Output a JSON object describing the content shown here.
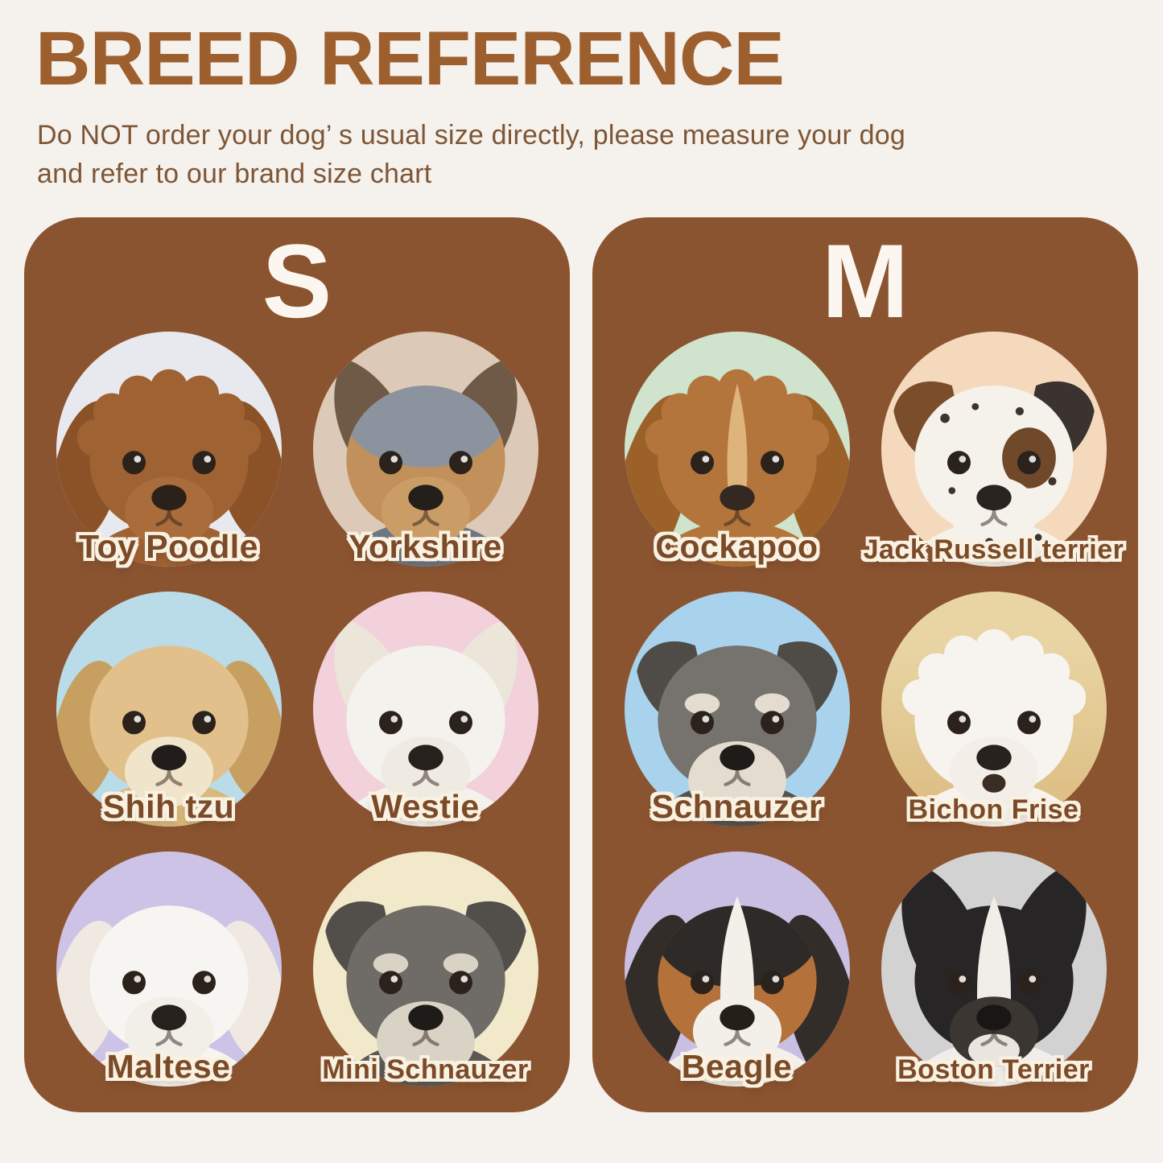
{
  "header": {
    "title": "BREED REFERENCE",
    "subtitle_line1": "Do NOT order your dog’ s usual size directly, please measure your dog",
    "subtitle_line2": "and refer to our brand size chart"
  },
  "theme": {
    "page_bg": "#f5f1ec",
    "panel_bg": "#8b5431",
    "title_color": "#9d5f2e",
    "subtitle_color": "#7d5636",
    "size_letter_color": "#fbf7f0",
    "label_color": "#7b4a28",
    "label_outline": "#f9f1e1"
  },
  "panels": [
    {
      "size_label": "S",
      "breeds": [
        {
          "name": "Toy Poodle",
          "bg": "#e7e9ee",
          "fur": "#9f6233",
          "ear": "floppy",
          "earColor": "#8a5226",
          "curly": true,
          "muzzle": "#a96c3a",
          "nose": "#2b2118",
          "chest": "#9f6233"
        },
        {
          "name": "Yorkshire",
          "bg": "#ddc9b7",
          "fur": "#c2905a",
          "top": "#8b939f",
          "ear": "pointy",
          "earColor": "#6e5a47",
          "muzzle": "#cb9d66",
          "nose": "#241f1b",
          "chest": "#6d7683"
        },
        {
          "name": "Shih tzu",
          "bg": "#b9dce8",
          "fur": "#e2c08b",
          "ear": "floppy",
          "earColor": "#c7a061",
          "muzzle": "#f0e4cb",
          "nose": "#221d1a",
          "chest": "#d9b87b"
        },
        {
          "name": "Westie",
          "bg": "#f2d1da",
          "fur": "#f4f2ed",
          "ear": "pointy",
          "earColor": "#ece5da",
          "muzzle": "#efebe3",
          "nose": "#26211d",
          "chest": "#f4f2ed"
        },
        {
          "name": "Maltese",
          "bg": "#cdc3e7",
          "fur": "#f7f5f1",
          "ear": "floppy",
          "earColor": "#efe9e1",
          "muzzle": "#f2eee8",
          "nose": "#26211d",
          "chest": "#f7f5f1"
        },
        {
          "name": "Mini Schnauzer",
          "bg": "#f1e9c9",
          "fur": "#6f6b67",
          "ear": "fold",
          "earColor": "#524f4b",
          "beard": "#d9d3c5",
          "nose": "#1e1b19",
          "chest": "#5c5955"
        }
      ]
    },
    {
      "size_label": "M",
      "breeds": [
        {
          "name": "Cockapoo",
          "bg": "#cfe3cd",
          "fur": "#b4753c",
          "ear": "long",
          "earColor": "#9c6129",
          "curly": true,
          "blaze": "#dfb37c",
          "nose": "#332822",
          "chest": "#b4753c"
        },
        {
          "name": "Jack Russell terrier",
          "bg": "#f5d9bd",
          "fur": "#f5f2ec",
          "ear": "fold",
          "earColor": "#7b4e2b",
          "earColor2": "#3b3330",
          "eyePatch": "#70482a",
          "spots": true,
          "muzzle": "#f5f2ec",
          "nose": "#2a2420",
          "chest": "#f5f2ec"
        },
        {
          "name": "Schnauzer",
          "bg": "#a9d2ec",
          "fur": "#76736e",
          "ear": "fold",
          "earColor": "#4f4c48",
          "beard": "#e4ddcf",
          "nose": "#1e1b19",
          "chest": "#55524e"
        },
        {
          "name": "Bichon Frise",
          "bg": "#e9d5a4",
          "bg2": "#dcbb80",
          "fur": "#f7f4ef",
          "ear": "none",
          "curly": true,
          "muzzle": "#f3efe8",
          "nose": "#28221e",
          "mouthOpen": true,
          "chest": "#f7f4ef"
        },
        {
          "name": "Beagle",
          "bg": "#c9bfe3",
          "fur": "#b5713a",
          "top": "#2e2a27",
          "ear": "long",
          "earColor": "#332d29",
          "blaze": "#f3f0ea",
          "blazeWide": true,
          "muzzle": "#f3f0ea",
          "nose": "#242019",
          "chest": "#f3f0ea"
        },
        {
          "name": "Boston Terrier",
          "bg": "#d2d2d2",
          "fur": "#272525",
          "ear": "bat",
          "earColor": "#272525",
          "blaze": "#f1eee9",
          "blazeWide": true,
          "muzzle": "#3b3631",
          "chin": "#e9e5df",
          "nose": "#191614",
          "chest": "#f1eee9"
        }
      ]
    }
  ]
}
